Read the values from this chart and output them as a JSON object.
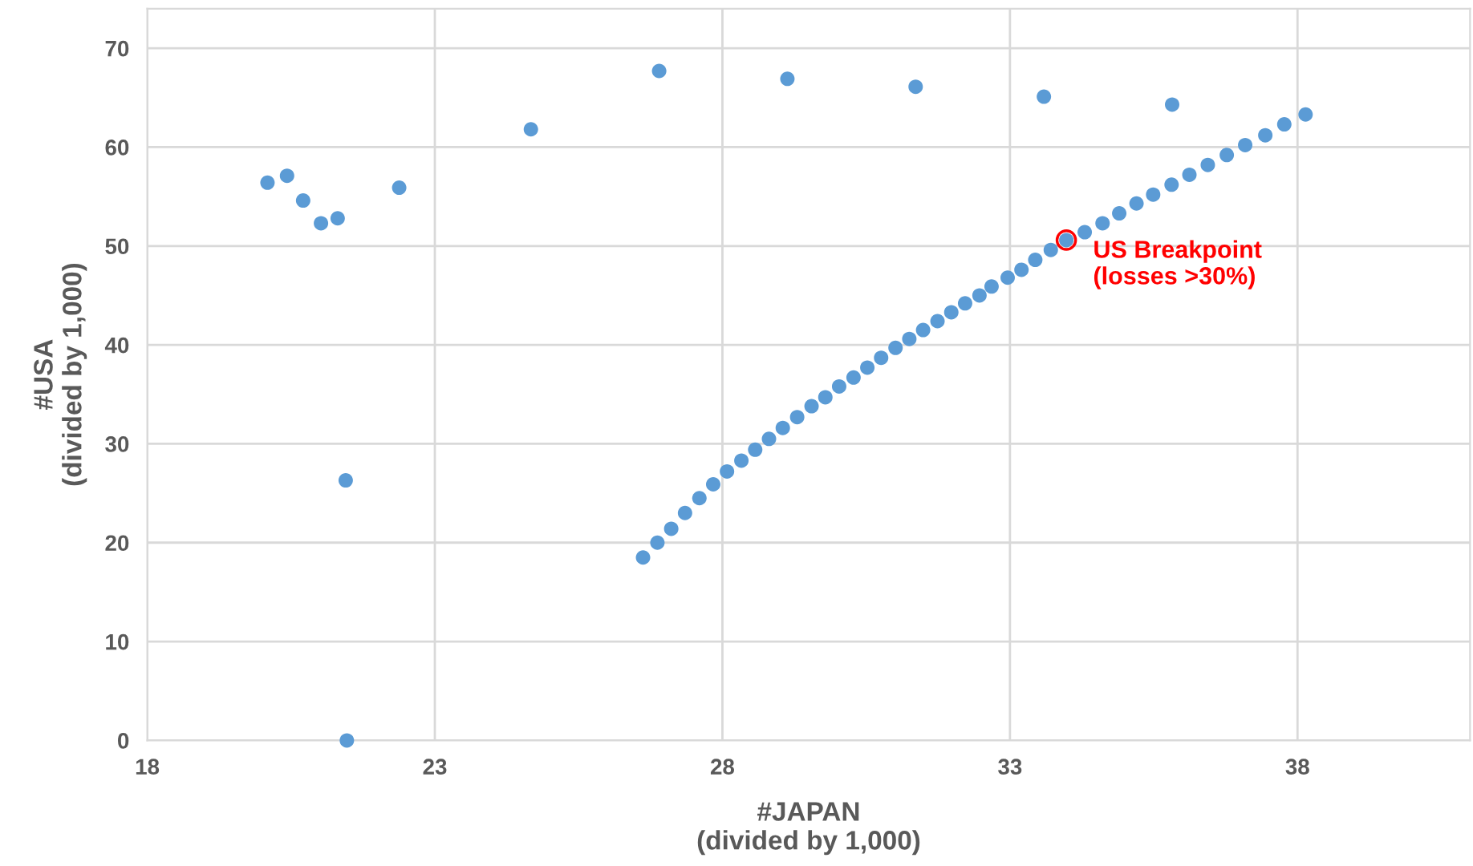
{
  "chart_data": {
    "type": "scatter",
    "xlabel": "#JAPAN\n(divided by 1,000)",
    "ylabel": "#USA\n(divided by 1,000)",
    "xlim": [
      18,
      41
    ],
    "ylim": [
      0,
      74
    ],
    "xticks": [
      18,
      23,
      28,
      33,
      38
    ],
    "yticks": [
      0,
      10,
      20,
      30,
      40,
      50,
      60,
      70
    ],
    "grid": true,
    "marker": "circle",
    "series": [
      {
        "color": "#5b9bd5",
        "x": [
          20.09,
          20.43,
          20.71,
          21.02,
          21.31,
          22.38,
          21.45,
          21.47,
          24.67,
          26.9,
          29.13,
          31.36,
          33.59,
          35.82,
          26.62,
          26.87,
          27.11,
          27.35,
          27.6,
          27.84,
          28.08,
          28.33,
          28.57,
          28.81,
          29.05,
          29.3,
          29.55,
          29.79,
          30.03,
          30.28,
          30.52,
          30.76,
          31.01,
          31.25,
          31.49,
          31.74,
          31.98,
          32.22,
          32.47,
          32.68,
          32.96,
          33.2,
          33.44,
          33.71,
          33.98,
          34.3,
          34.61,
          34.9,
          35.2,
          35.49,
          35.81,
          36.12,
          36.44,
          36.77,
          37.09,
          37.44,
          37.77,
          38.14
        ],
        "values": [
          56.4,
          57.1,
          54.6,
          52.3,
          52.8,
          55.9,
          26.3,
          0,
          61.8,
          67.7,
          66.9,
          66.1,
          65.1,
          64.3,
          18.5,
          20,
          21.4,
          23,
          24.5,
          25.9,
          27.2,
          28.3,
          29.4,
          30.5,
          31.6,
          32.7,
          33.8,
          34.7,
          35.8,
          36.7,
          37.7,
          38.7,
          39.7,
          40.6,
          41.5,
          42.4,
          43.3,
          44.2,
          45,
          45.9,
          46.8,
          47.6,
          48.6,
          49.6,
          50.6,
          51.4,
          52.3,
          53.3,
          54.3,
          55.2,
          56.2,
          57.2,
          58.2,
          59.2,
          60.2,
          61.2,
          62.3,
          63.3
        ]
      }
    ],
    "annotations": [
      {
        "text": "US Breakpoint\n(losses >30%)",
        "x": 33.98,
        "y": 50.6
      }
    ]
  }
}
